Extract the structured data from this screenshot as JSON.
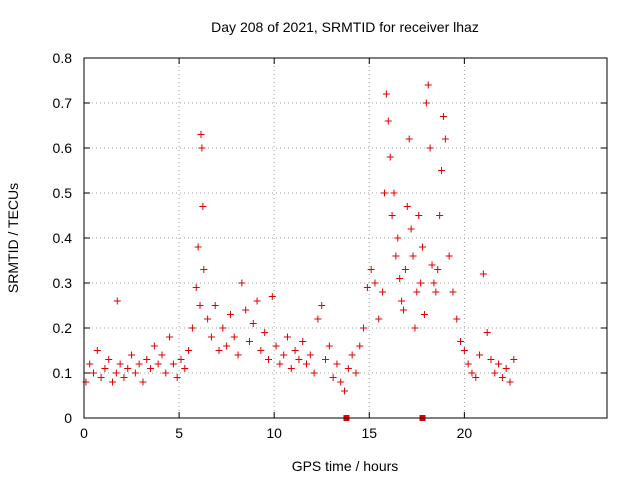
{
  "chart_data": {
    "type": "scatter",
    "title": "Day 208 of 2021, SRMTID for receiver lhaz",
    "xlabel": "GPS time / hours",
    "ylabel": "SRMTID / TECUs",
    "xlim": [
      0,
      27.5
    ],
    "ylim": [
      0,
      0.8
    ],
    "xticks": [
      "0",
      "5",
      "10",
      "15",
      "20"
    ],
    "yticks": [
      "0",
      "0.1",
      "0.2",
      "0.3",
      "0.4",
      "0.5",
      "0.6",
      "0.7",
      "0.8"
    ],
    "grid": true,
    "marker": "+",
    "color": "#e00000",
    "series": [
      {
        "name": "SRMTID",
        "x": [
          0.1,
          0.3,
          0.5,
          0.7,
          0.9,
          1.1,
          1.3,
          1.5,
          1.7,
          1.75,
          1.9,
          2.1,
          2.3,
          2.5,
          2.7,
          2.9,
          3.1,
          3.3,
          3.5,
          3.7,
          3.9,
          4.1,
          4.3,
          4.5,
          4.7,
          4.9,
          5.1,
          5.3,
          5.5,
          5.7,
          5.9,
          6.0,
          6.1,
          6.15,
          6.2,
          6.25,
          6.3,
          6.5,
          6.7,
          6.9,
          7.1,
          7.3,
          7.5,
          7.7,
          7.9,
          8.1,
          8.3,
          8.5,
          8.7,
          8.9,
          9.1,
          9.3,
          9.5,
          9.7,
          9.9,
          10.1,
          10.3,
          10.5,
          10.7,
          10.9,
          11.1,
          11.3,
          11.5,
          11.7,
          11.9,
          12.1,
          12.3,
          12.5,
          12.7,
          12.9,
          13.1,
          13.3,
          13.5,
          13.7,
          13.9,
          14.1,
          14.3,
          14.5,
          14.7,
          14.9,
          15.1,
          15.3,
          15.5,
          15.7,
          15.8,
          15.9,
          16.0,
          16.1,
          16.2,
          16.3,
          16.4,
          16.5,
          16.6,
          16.7,
          16.8,
          16.9,
          17.0,
          17.1,
          17.2,
          17.3,
          17.4,
          17.5,
          17.6,
          17.7,
          17.8,
          17.9,
          18.0,
          18.1,
          18.2,
          18.3,
          18.4,
          18.5,
          18.6,
          18.7,
          18.8,
          18.9,
          19.0,
          19.2,
          19.4,
          19.6,
          19.8,
          20.0,
          20.2,
          20.4,
          20.6,
          20.8,
          21.0,
          21.2,
          21.4,
          21.6,
          21.8,
          22.0,
          22.2,
          22.4,
          22.6
        ],
        "y": [
          0.08,
          0.12,
          0.1,
          0.15,
          0.09,
          0.11,
          0.13,
          0.08,
          0.1,
          0.26,
          0.12,
          0.09,
          0.11,
          0.14,
          0.1,
          0.12,
          0.08,
          0.13,
          0.11,
          0.16,
          0.12,
          0.14,
          0.1,
          0.18,
          0.12,
          0.09,
          0.13,
          0.11,
          0.15,
          0.2,
          0.29,
          0.38,
          0.25,
          0.63,
          0.6,
          0.47,
          0.33,
          0.22,
          0.18,
          0.25,
          0.15,
          0.2,
          0.16,
          0.23,
          0.18,
          0.14,
          0.3,
          0.24,
          0.17,
          0.21,
          0.26,
          0.15,
          0.19,
          0.13,
          0.27,
          0.16,
          0.12,
          0.14,
          0.18,
          0.11,
          0.15,
          0.13,
          0.17,
          0.12,
          0.14,
          0.1,
          0.22,
          0.25,
          0.13,
          0.16,
          0.09,
          0.12,
          0.08,
          0.06,
          0.11,
          0.14,
          0.1,
          0.16,
          0.2,
          0.29,
          0.33,
          0.3,
          0.22,
          0.28,
          0.5,
          0.72,
          0.66,
          0.58,
          0.45,
          0.5,
          0.36,
          0.4,
          0.31,
          0.26,
          0.24,
          0.33,
          0.47,
          0.62,
          0.42,
          0.36,
          0.2,
          0.28,
          0.45,
          0.3,
          0.38,
          0.23,
          0.7,
          0.74,
          0.6,
          0.34,
          0.3,
          0.28,
          0.33,
          0.45,
          0.55,
          0.67,
          0.62,
          0.36,
          0.28,
          0.22,
          0.17,
          0.15,
          0.12,
          0.1,
          0.09,
          0.14,
          0.32,
          0.19,
          0.13,
          0.1,
          0.12,
          0.09,
          0.11,
          0.08,
          0.13
        ]
      }
    ],
    "extra_markers": [
      {
        "x": 13.8,
        "y": 0.0
      },
      {
        "x": 17.8,
        "y": 0.0
      }
    ]
  }
}
